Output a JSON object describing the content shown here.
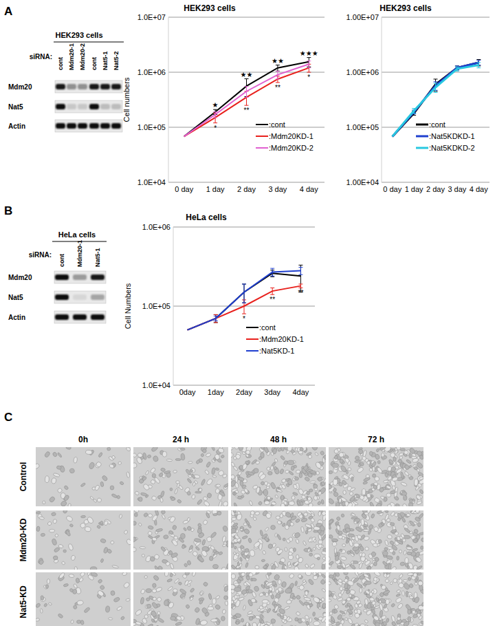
{
  "panel_labels": [
    "A",
    "B",
    "C"
  ],
  "blots": [
    {
      "title": "HEK293 cells",
      "row_header": "siRNA:",
      "lanes": [
        "cont",
        "Mdm20-1",
        "Mdm20-2",
        "cont",
        "Nat5-1",
        "Nat5-2"
      ],
      "rows": [
        {
          "name": "Mdm20",
          "bands": [
            0.95,
            0.4,
            0.4,
            0.95,
            0.95,
            0.95
          ]
        },
        {
          "name": "Nat5",
          "bands": [
            1,
            0.15,
            0.15,
            1,
            0.2,
            0.2
          ]
        },
        {
          "name": "Actin",
          "bands": [
            1,
            1,
            1,
            1,
            1,
            1
          ]
        }
      ]
    },
    {
      "title": "HeLa cells",
      "row_header": "siRNA:",
      "lanes": [
        "cont",
        "Mdm20-1",
        "Nat5-1"
      ],
      "rows": [
        {
          "name": "Mdm20",
          "bands": [
            1,
            0.35,
            0.95
          ]
        },
        {
          "name": "Nat5",
          "bands": [
            1,
            0.08,
            0.3
          ]
        },
        {
          "name": "Actin",
          "bands": [
            1,
            1,
            1
          ]
        }
      ]
    }
  ],
  "chart_data": [
    {
      "type": "line",
      "title": "HEK293 cells",
      "y_label": "Cell numbers",
      "categories": [
        "0 day",
        "1 day",
        "2 day",
        "3 day",
        "4 day"
      ],
      "log": "y",
      "grid": true,
      "legend": "bottom-right",
      "ylim": [
        10000,
        10000000
      ],
      "yticks": [
        {
          "value": 10000,
          "label": "1.0E+04"
        },
        {
          "value": 100000,
          "label": "1.0E+05"
        },
        {
          "value": 1000000,
          "label": "1.0E+06"
        },
        {
          "value": 10000000,
          "label": "1.0E+07"
        }
      ],
      "series": [
        {
          "name": ":cont",
          "color": "#000000",
          "values": [
            68000,
            190000,
            560000,
            1200000,
            1550000
          ],
          "errors": [
            0,
            20000,
            200000,
            150000,
            300000
          ]
        },
        {
          "name": ":Mdm20KD-1",
          "color": "#e8201c",
          "values": [
            68000,
            150000,
            350000,
            750000,
            1200000
          ],
          "errors": [
            0,
            30000,
            100000,
            100000,
            200000
          ]
        },
        {
          "name": ":Mdm20KD-2",
          "color": "#e060d0",
          "values": [
            68000,
            170000,
            450000,
            900000,
            1400000
          ],
          "errors": [
            0,
            20000,
            100000,
            150000,
            200000
          ]
        }
      ],
      "annotations": [
        {
          "text": "★",
          "category": "1 day",
          "series": ":cont"
        },
        {
          "text": "*",
          "category": "1 day",
          "series": ":Mdm20KD-1"
        },
        {
          "text": "★★",
          "category": "2 day",
          "series": ":cont"
        },
        {
          "text": "**",
          "category": "2 day",
          "series": ":Mdm20KD-1"
        },
        {
          "text": "★★",
          "category": "3 day",
          "series": ":cont"
        },
        {
          "text": "**",
          "category": "3 day",
          "series": ":Mdm20KD-1"
        },
        {
          "text": "★★★",
          "category": "4 day",
          "series": ":cont"
        },
        {
          "text": "*",
          "category": "4 day",
          "series": ":Mdm20KD-1"
        }
      ]
    },
    {
      "type": "line",
      "title": "HEK293 cells",
      "categories": [
        "0 day",
        "1 day",
        "2 day",
        "3 day",
        "4 day"
      ],
      "log": "y",
      "grid": true,
      "legend": "bottom-right",
      "ylim": [
        10000,
        10000000
      ],
      "yticks": [
        {
          "value": 10000,
          "label": "1.00E+04"
        },
        {
          "value": 100000,
          "label": "1.00E+05"
        },
        {
          "value": 1000000,
          "label": "1.00E+06"
        },
        {
          "value": 10000000,
          "label": "1.00E+07"
        }
      ],
      "series": [
        {
          "name": ":cont",
          "color": "#000000",
          "values": [
            68000,
            180000,
            600000,
            1200000,
            1500000
          ],
          "errors": [
            0,
            15000,
            150000,
            100000,
            200000
          ]
        },
        {
          "name": ":Nat5KDKD-1",
          "color": "#1f3fcf",
          "values": [
            68000,
            190000,
            570000,
            1200000,
            1500000
          ],
          "errors": [
            0,
            15000,
            100000,
            100000,
            150000
          ]
        },
        {
          "name": ":Nat5KDKD-2",
          "color": "#28c8e0",
          "values": [
            68000,
            200000,
            530000,
            1150000,
            1350000
          ],
          "errors": [
            0,
            20000,
            100000,
            100000,
            150000
          ]
        }
      ]
    },
    {
      "type": "line",
      "title": "HeLa cells",
      "y_label": "Cell Numbers",
      "categories": [
        "0day",
        "1day",
        "2day",
        "3day",
        "4day"
      ],
      "log": "y",
      "grid": true,
      "legend": "bottom-right",
      "ylim": [
        10000,
        1000000
      ],
      "yticks": [
        {
          "value": 10000,
          "label": "1.0E+04"
        },
        {
          "value": 100000,
          "label": "1.0E+05"
        },
        {
          "value": 1000000,
          "label": "1.0E+06"
        }
      ],
      "series": [
        {
          "name": ":cont",
          "color": "#000000",
          "values": [
            50000,
            70000,
            150000,
            260000,
            240000
          ],
          "errors": [
            0,
            8000,
            40000,
            25000,
            90000
          ]
        },
        {
          "name": ":Mdm20KD-1",
          "color": "#e8201c",
          "values": [
            50000,
            70000,
            100000,
            155000,
            180000
          ],
          "errors": [
            0,
            8000,
            20000,
            15000,
            10000
          ]
        },
        {
          "name": ":Nat5KD-1",
          "color": "#1f3fcf",
          "values": [
            50000,
            70000,
            150000,
            270000,
            280000
          ],
          "errors": [
            0,
            5000,
            40000,
            30000,
            30000
          ]
        }
      ],
      "annotations": [
        {
          "text": "*",
          "category": "2day",
          "series": ":Mdm20KD-1"
        },
        {
          "text": "**",
          "category": "3day",
          "series": ":Mdm20KD-1"
        },
        {
          "text": "**",
          "category": "4day",
          "series": ":Mdm20KD-1"
        }
      ]
    }
  ],
  "micrographs": {
    "columns": [
      "0h",
      "24 h",
      "48 h",
      "72 h"
    ],
    "rows": [
      "Control",
      "Mdm20-KD",
      "Nat5-KD"
    ]
  }
}
